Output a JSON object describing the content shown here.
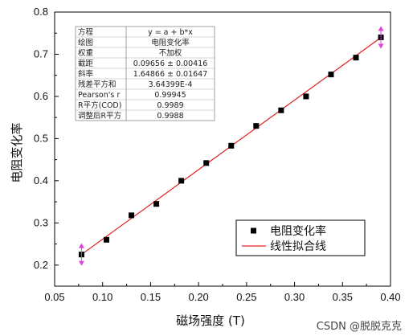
{
  "chart_data": {
    "type": "scatter",
    "xlabel": "磁场强度 (T)",
    "ylabel": "电阻变化率",
    "xlim": [
      0.05,
      0.4
    ],
    "ylim": [
      0.15,
      0.8
    ],
    "x_ticks": [
      "0.05",
      "0.10",
      "0.15",
      "0.20",
      "0.25",
      "0.30",
      "0.35",
      "0.40"
    ],
    "y_ticks": [
      "0.2",
      "0.3",
      "0.4",
      "0.5",
      "0.6",
      "0.7",
      "0.8"
    ],
    "x_tick_values": [
      0.05,
      0.1,
      0.15,
      0.2,
      0.25,
      0.3,
      0.35,
      0.4
    ],
    "y_tick_values": [
      0.2,
      0.3,
      0.4,
      0.5,
      0.6,
      0.7,
      0.8
    ],
    "series": [
      {
        "name": "电阻变化率",
        "marker": "square",
        "color": "#000000",
        "x": [
          0.078,
          0.104,
          0.13,
          0.156,
          0.182,
          0.208,
          0.234,
          0.26,
          0.286,
          0.312,
          0.338,
          0.364,
          0.39
        ],
        "y": [
          0.225,
          0.26,
          0.318,
          0.345,
          0.4,
          0.442,
          0.483,
          0.53,
          0.567,
          0.6,
          0.652,
          0.692,
          0.74
        ]
      },
      {
        "name": "线性拟合线",
        "kind": "line",
        "color": "#e02020",
        "intercept": 0.09656,
        "slope": 1.64866,
        "x_range": [
          0.078,
          0.39
        ]
      }
    ],
    "error_markers": {
      "color": "#e040e0",
      "points": [
        [
          0.078,
          0.225
        ],
        [
          0.39,
          0.74
        ]
      ]
    },
    "legend": {
      "placement": "bottom-right",
      "entries": [
        {
          "label": "电阻变化率",
          "symbol": "square"
        },
        {
          "label": "线性拟合线",
          "symbol": "line"
        }
      ]
    },
    "fit_table": {
      "placement": "top-left",
      "rows": [
        [
          "方程",
          "y = a + b*x"
        ],
        [
          "绘图",
          "电阻变化率"
        ],
        [
          "权重",
          "不加权"
        ],
        [
          "截距",
          "0.09656 ± 0.00416"
        ],
        [
          "斜率",
          "1.64866 ± 0.01647"
        ],
        [
          "残差平方和",
          "3.64399E-4"
        ],
        [
          "Pearson's r",
          "0.99945"
        ],
        [
          "R平方(COD)",
          "0.9989"
        ],
        [
          "调整后R平方",
          "0.9988"
        ]
      ]
    }
  },
  "watermark": "CSDN @脱脱克克"
}
